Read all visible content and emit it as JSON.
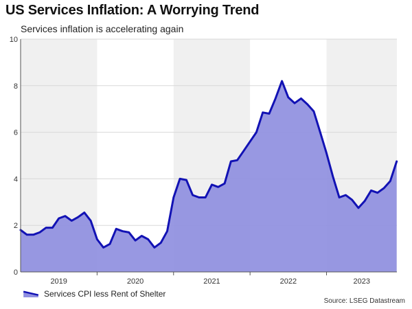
{
  "header": {
    "title": "US Services Inflation: A Worrying Trend",
    "subtitle": "Services inflation is accelerating again"
  },
  "legend": {
    "label": "Services CPI less Rent of Shelter"
  },
  "source": "Source: LSEG Datastream",
  "colors": {
    "line": "#1212b4",
    "fill": "#8f8fe0",
    "band": "#f0f0f0",
    "grid": "#d8d8d8"
  },
  "chart_data": {
    "type": "area",
    "title": "US Services Inflation: A Worrying Trend",
    "subtitle": "Services inflation is accelerating again",
    "xlabel": "",
    "ylabel": "",
    "ylim": [
      0,
      10
    ],
    "yticks": [
      0,
      2,
      4,
      6,
      8,
      10
    ],
    "xlim": [
      2019.0,
      2023.92
    ],
    "xtick_labels": [
      "2019",
      "2020",
      "2021",
      "2022",
      "2023"
    ],
    "shaded_years": [
      "2019",
      "2021",
      "2023"
    ],
    "legend_position": "bottom-left",
    "series": [
      {
        "name": "Services CPI less Rent of Shelter",
        "x": [
          2019.0,
          2019.083,
          2019.167,
          2019.25,
          2019.333,
          2019.417,
          2019.5,
          2019.583,
          2019.667,
          2019.75,
          2019.833,
          2019.917,
          2020.0,
          2020.083,
          2020.167,
          2020.25,
          2020.333,
          2020.417,
          2020.5,
          2020.583,
          2020.667,
          2020.75,
          2020.833,
          2020.917,
          2021.0,
          2021.083,
          2021.167,
          2021.25,
          2021.333,
          2021.417,
          2021.5,
          2021.583,
          2021.667,
          2021.75,
          2021.833,
          2021.917,
          2022.0,
          2022.083,
          2022.167,
          2022.25,
          2022.333,
          2022.417,
          2022.5,
          2022.583,
          2022.667,
          2022.75,
          2022.833,
          2022.917,
          2023.0,
          2023.083,
          2023.167,
          2023.25,
          2023.333,
          2023.417,
          2023.5,
          2023.583,
          2023.667,
          2023.75,
          2023.833,
          2023.917
        ],
        "values": [
          1.8,
          1.6,
          1.6,
          1.7,
          1.9,
          1.9,
          2.3,
          2.4,
          2.2,
          2.35,
          2.55,
          2.2,
          1.4,
          1.05,
          1.2,
          1.85,
          1.75,
          1.7,
          1.35,
          1.55,
          1.4,
          1.05,
          1.25,
          1.75,
          3.2,
          4.0,
          3.95,
          3.3,
          3.2,
          3.2,
          3.75,
          3.65,
          3.8,
          4.75,
          4.8,
          5.2,
          5.6,
          6.0,
          6.85,
          6.8,
          7.45,
          8.2,
          7.5,
          7.25,
          7.45,
          7.2,
          6.9,
          6.0,
          5.1,
          4.1,
          3.2,
          3.3,
          3.1,
          2.75,
          3.05,
          3.5,
          3.4,
          3.6,
          3.9,
          4.75
        ]
      }
    ]
  }
}
